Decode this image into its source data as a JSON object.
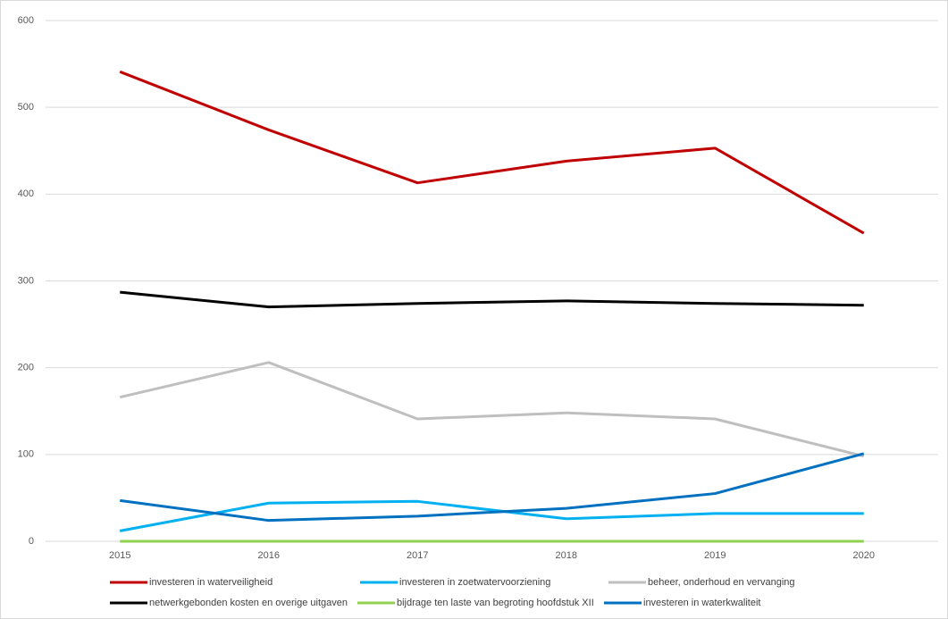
{
  "chart_data": {
    "type": "line",
    "categories": [
      "2015",
      "2016",
      "2017",
      "2018",
      "2019",
      "2020"
    ],
    "series": [
      {
        "name": "investeren in waterveiligheid",
        "color": "#c00000",
        "values": [
          541,
          474,
          413,
          438,
          453,
          355
        ]
      },
      {
        "name": "investeren in zoetwatervoorziening",
        "color": "#00b0f0",
        "values": [
          12,
          44,
          46,
          26,
          32,
          32
        ]
      },
      {
        "name": "beheer, onderhoud en vervanging",
        "color": "#bfbfbf",
        "values": [
          166,
          206,
          141,
          148,
          141,
          98
        ]
      },
      {
        "name": "netwerkgebonden kosten en overige uitgaven",
        "color": "#000000",
        "values": [
          287,
          270,
          274,
          277,
          274,
          272
        ]
      },
      {
        "name": "bijdrage ten laste van begroting hoofdstuk XII",
        "color": "#92d050",
        "values": [
          0,
          0,
          0,
          0,
          0,
          0
        ]
      },
      {
        "name": "investeren in waterkwaliteit",
        "color": "#0070c0",
        "values": [
          47,
          24,
          29,
          38,
          55,
          101
        ]
      }
    ],
    "ylim": [
      0,
      600
    ],
    "yticks": [
      0,
      100,
      200,
      300,
      400,
      500,
      600
    ],
    "grid": true
  }
}
